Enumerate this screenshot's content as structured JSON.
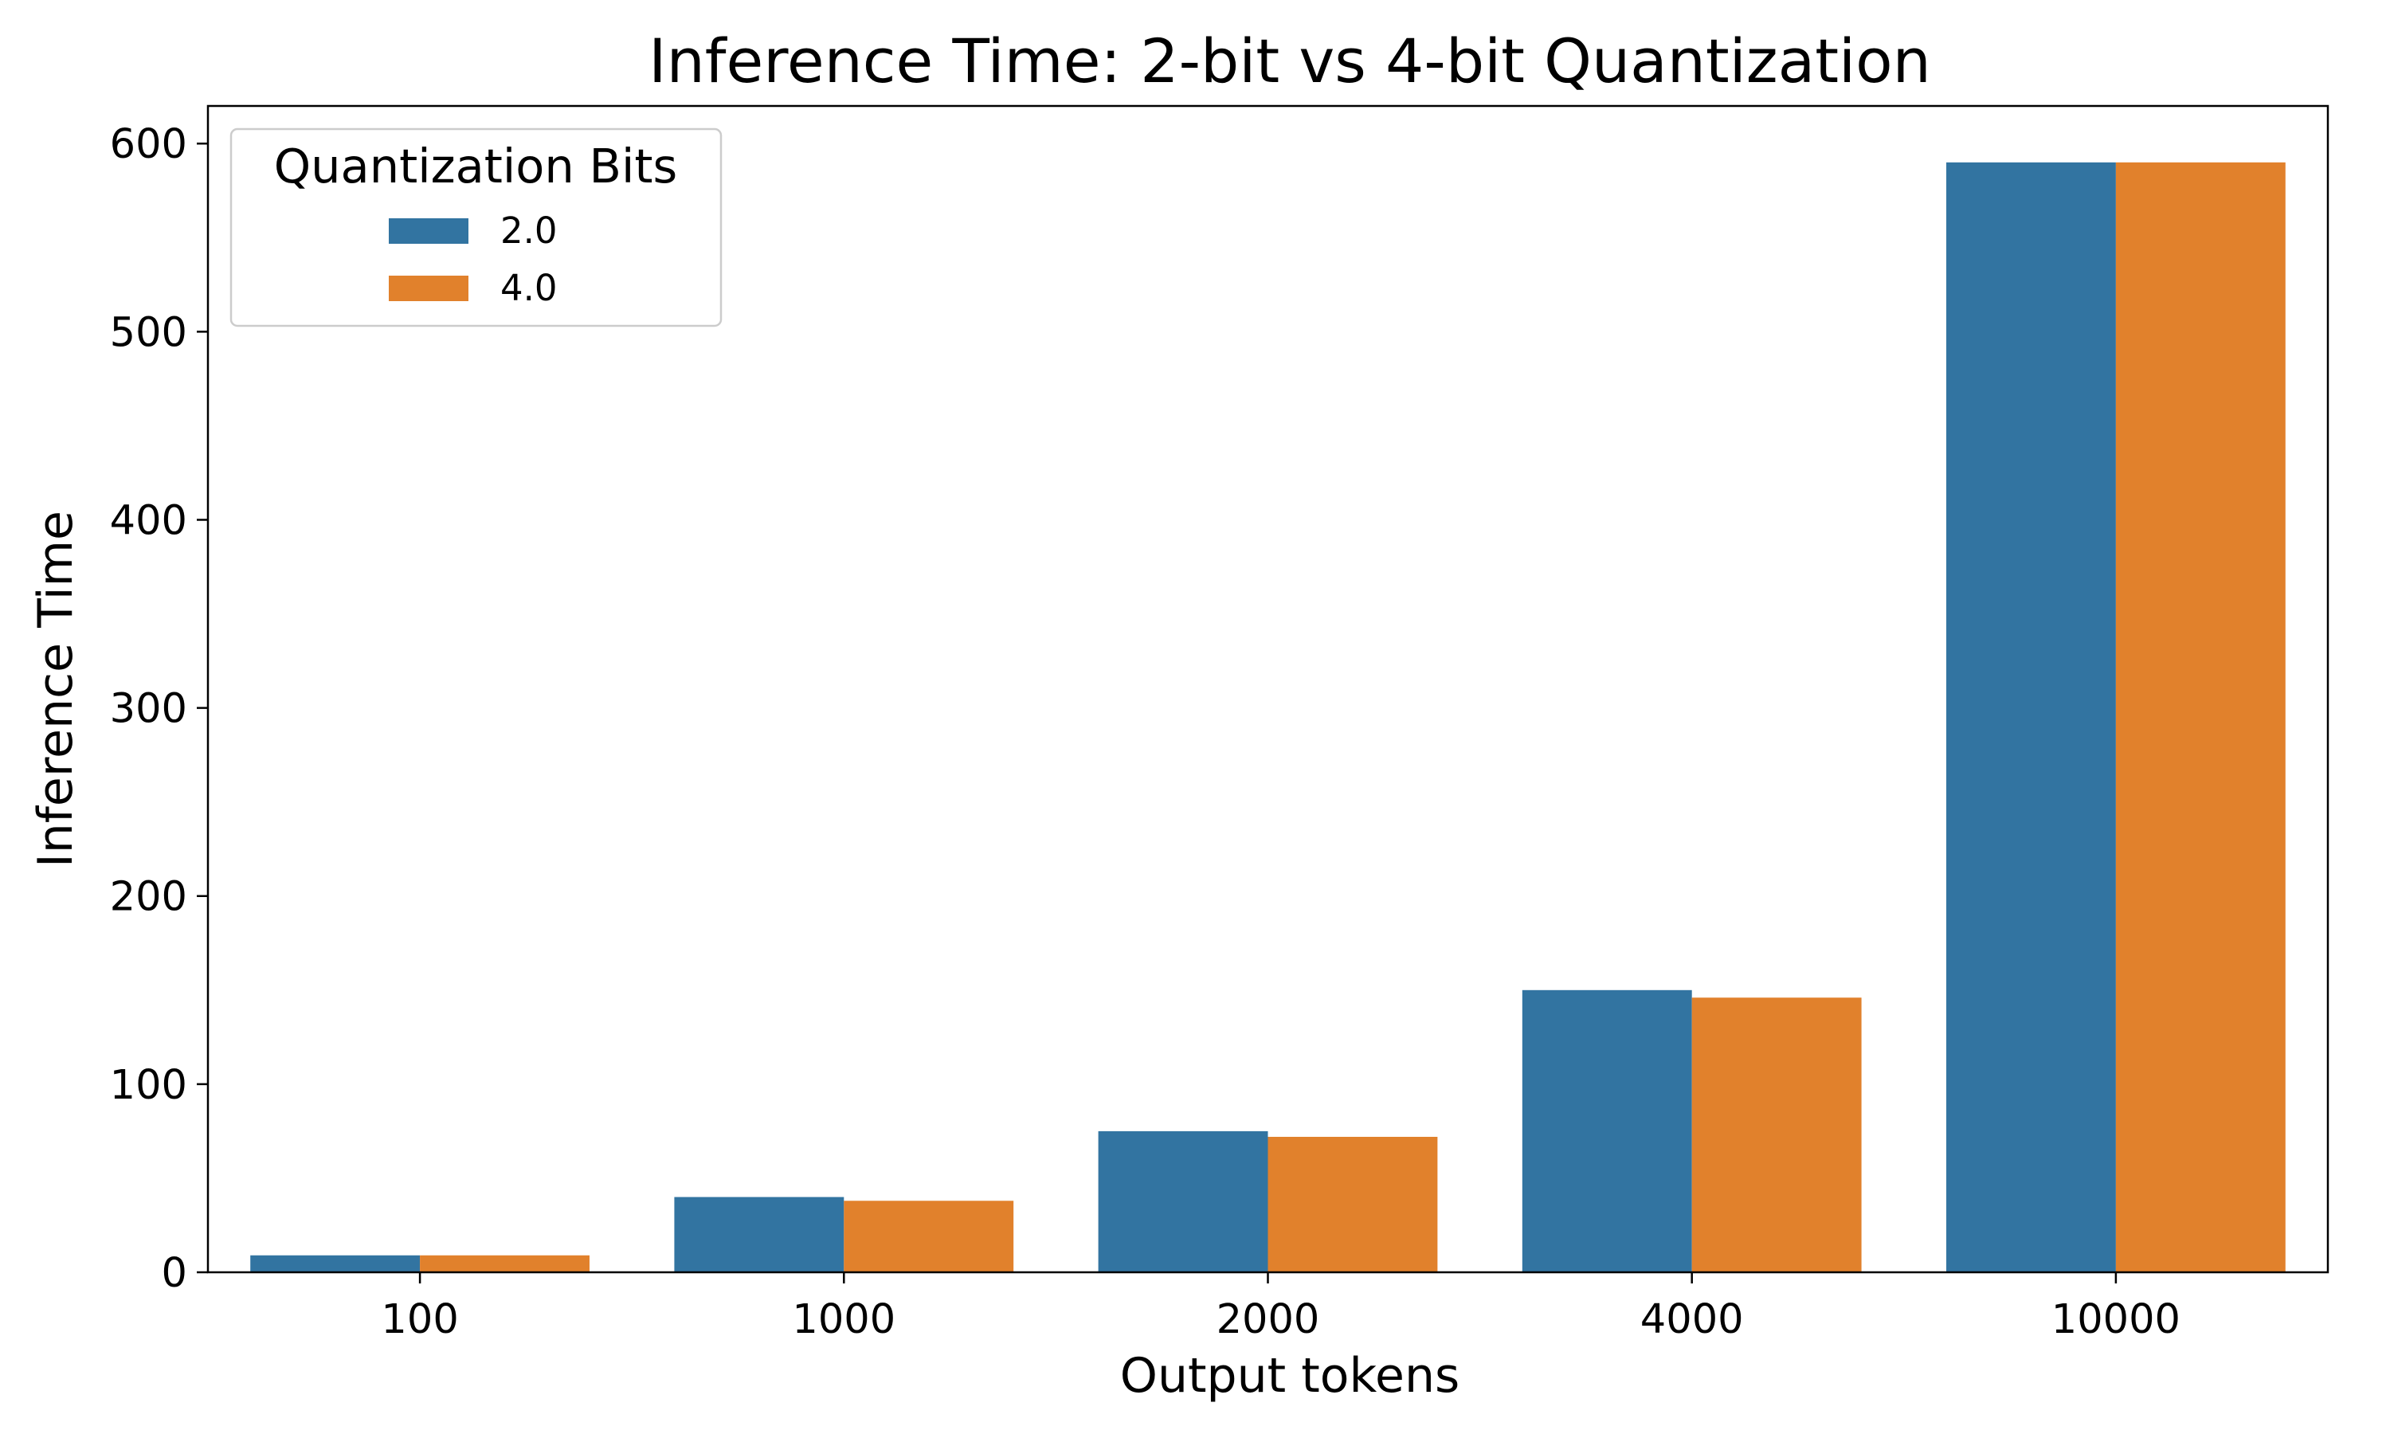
{
  "chart_data": {
    "type": "bar",
    "title": "Inference Time: 2-bit vs 4-bit Quantization",
    "xlabel": "Output tokens",
    "ylabel": "Inference Time",
    "categories": [
      "100",
      "1000",
      "2000",
      "4000",
      "10000"
    ],
    "series": [
      {
        "name": "2.0",
        "color": "#3274a1",
        "values": [
          9,
          40,
          75,
          150,
          590
        ]
      },
      {
        "name": "4.0",
        "color": "#e1812c",
        "values": [
          9,
          38,
          72,
          146,
          590
        ]
      }
    ],
    "ylim": [
      0,
      620
    ],
    "yticks": [
      0,
      100,
      200,
      300,
      400,
      500,
      600
    ],
    "grid": false,
    "legend": {
      "title": "Quantization Bits",
      "placement": "top-left"
    }
  }
}
